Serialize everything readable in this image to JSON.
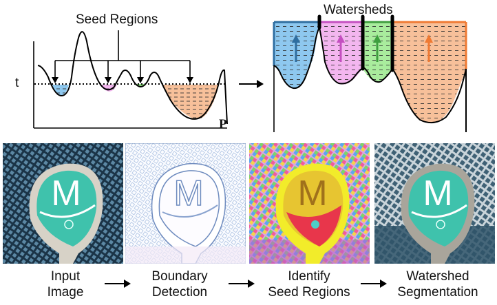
{
  "diagram": {
    "seed_regions_title": "Seed Regions",
    "watersheds_title": "Watersheds",
    "threshold_label": "t",
    "position_label": "P"
  },
  "steps": [
    {
      "line1": "Input",
      "line2": "Image"
    },
    {
      "line1": "Boundary",
      "line2": "Detection"
    },
    {
      "line1": "Identify",
      "line2": "Seed Regions"
    },
    {
      "line1": "Watershed",
      "line2": "Segmentation"
    }
  ],
  "badge": {
    "letter": "M"
  },
  "colors": {
    "blue": "#8ec8ef",
    "pink": "#f3b6ef",
    "green": "#a9ec9d",
    "orange": "#f7c09a",
    "blue_edge": "#2f6ea0",
    "pink_edge": "#c44fc0",
    "green_edge": "#3f9e3f",
    "orange_edge": "#ef7a33",
    "teal": "#3fc2ac",
    "yellow": "#f2ec2a"
  }
}
